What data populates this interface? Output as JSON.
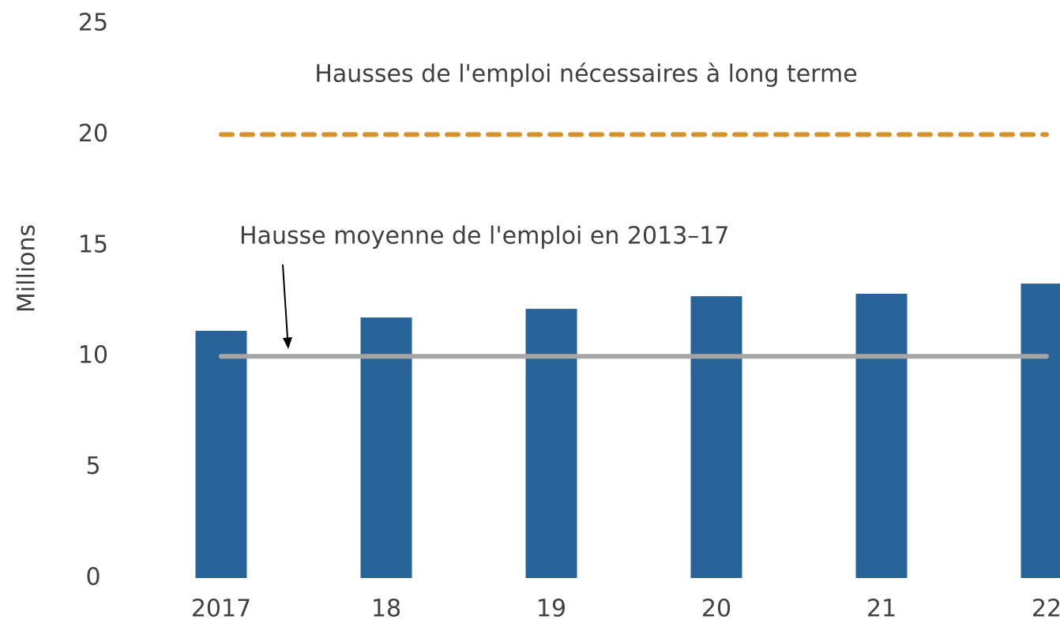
{
  "chart_data": {
    "type": "bar",
    "ylabel": "Millions",
    "categories": [
      "2017",
      "18",
      "19",
      "20",
      "21",
      "22"
    ],
    "values": [
      11.15,
      11.75,
      12.14,
      12.71,
      12.82,
      13.28
    ],
    "color": "#276399",
    "ylim": [
      0,
      25
    ],
    "yticks": [
      0,
      5,
      10,
      15,
      20,
      25
    ],
    "lines": [
      {
        "name": "Hausse moyenne de l'emploi en 2013–17",
        "color": "#a5a5a5",
        "dashed": false,
        "values": [
          10,
          10,
          10,
          10,
          10,
          10
        ]
      },
      {
        "name": "Hausses de l'emploi nécessaires à long terme",
        "color": "#d4922f",
        "dashed": true,
        "values": [
          20,
          20,
          20,
          20,
          20,
          20
        ]
      }
    ]
  }
}
